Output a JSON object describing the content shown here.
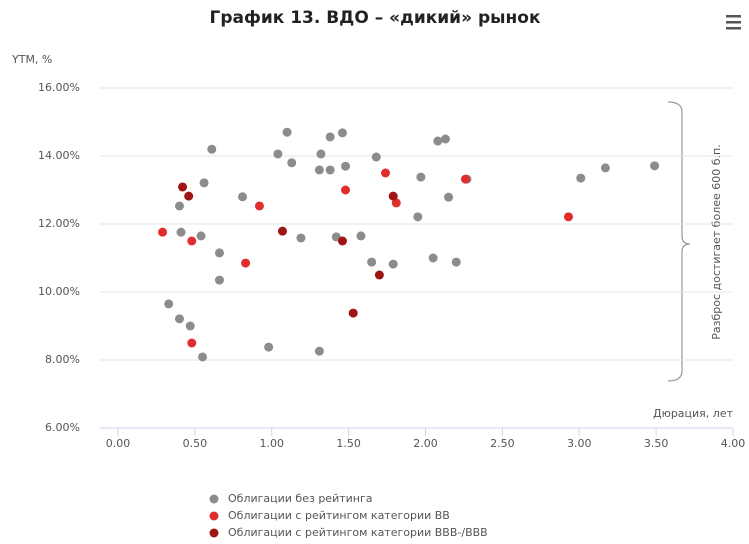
{
  "chart_data": {
    "type": "scatter",
    "title": "График 13. ВДО – «дикий» рынок",
    "y_label": "YTM, %",
    "x_label": "Дюрация, лет",
    "annotation": "Разброс достигает более 600 б.п.",
    "xlim": [
      -0.1,
      4.0
    ],
    "ylim": [
      6,
      16
    ],
    "xticks": [
      {
        "value": 0,
        "label": "0.00"
      },
      {
        "value": 0.5,
        "label": "0.50"
      },
      {
        "value": 1,
        "label": "1.00"
      },
      {
        "value": 1.5,
        "label": "1.50"
      },
      {
        "value": 2,
        "label": "2.00"
      },
      {
        "value": 2.5,
        "label": "2.50"
      },
      {
        "value": 3,
        "label": "3.00"
      },
      {
        "value": 3.5,
        "label": "3.50"
      },
      {
        "value": 4,
        "label": "4.00"
      }
    ],
    "yticks": [
      {
        "value": 6,
        "label": "6.00%"
      },
      {
        "value": 8,
        "label": "8.00%"
      },
      {
        "value": 10,
        "label": "10.00%"
      },
      {
        "value": 12,
        "label": "12.00%"
      },
      {
        "value": 14,
        "label": "14.00%"
      },
      {
        "value": 16,
        "label": "16.00%"
      }
    ],
    "grid": true,
    "legend": "bottom",
    "series": [
      {
        "name": "Облигации без рейтинга",
        "color": "#8c8c8c",
        "x": [
          0.61,
          1.1,
          1.04,
          1.13,
          1.38,
          1.46,
          1.32,
          1.31,
          1.38,
          1.48,
          1.68,
          2.08,
          2.13,
          0.56,
          0.81,
          0.4,
          0.41,
          0.54,
          0.66,
          0.66,
          1.19,
          1.42,
          1.58,
          1.97,
          1.95,
          2.15,
          2.27,
          1.65,
          1.79,
          2.05,
          2.2,
          3.01,
          3.17,
          3.49,
          0.33,
          0.4,
          0.47,
          0.55,
          0.98,
          1.31
        ],
        "values": [
          14.2,
          14.7,
          14.06,
          13.8,
          14.56,
          14.68,
          14.06,
          13.59,
          13.59,
          13.7,
          13.97,
          14.44,
          14.5,
          13.21,
          12.8,
          12.53,
          11.76,
          11.65,
          11.15,
          10.35,
          11.59,
          11.62,
          11.65,
          13.38,
          12.21,
          12.79,
          13.32,
          10.88,
          10.82,
          11.0,
          10.88,
          13.35,
          13.65,
          13.71,
          9.65,
          9.21,
          9.0,
          8.09,
          8.38,
          8.26
        ]
      },
      {
        "name": "Облигации с рейтингом категории BB",
        "color": "#e02e2e",
        "x": [
          0.29,
          0.48,
          0.48,
          0.83,
          0.92,
          1.48,
          1.74,
          1.81,
          2.26,
          2.93
        ],
        "values": [
          11.76,
          11.5,
          8.5,
          10.85,
          12.53,
          13.0,
          13.5,
          12.62,
          13.32,
          12.21
        ]
      },
      {
        "name": "Облигации с рейтингом категории BBB-/BBB",
        "color": "#a01414",
        "x": [
          0.42,
          0.46,
          1.07,
          1.46,
          1.79,
          1.7,
          1.53
        ],
        "values": [
          13.09,
          12.82,
          11.79,
          11.5,
          12.82,
          10.5,
          9.38
        ]
      }
    ]
  }
}
